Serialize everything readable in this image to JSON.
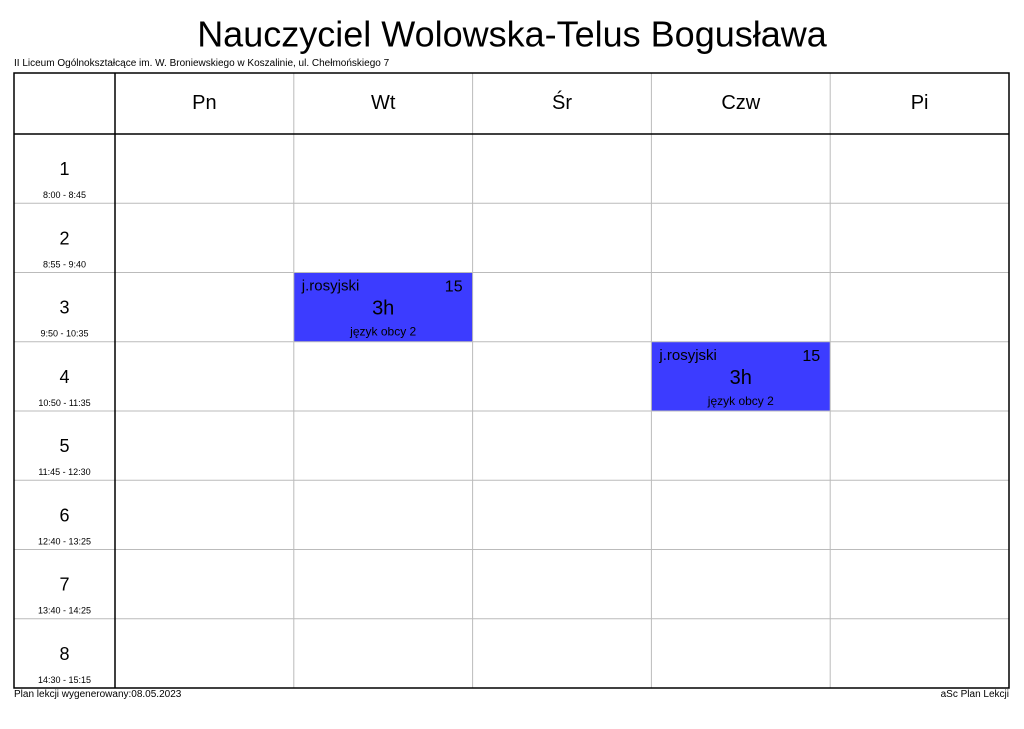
{
  "header": {
    "title": "Nauczyciel Wolowska-Telus Bogusława",
    "subtitle": "II Liceum Ogólnokształcące im. W. Broniewskiego w Koszalinie, ul. Chełmońskiego 7"
  },
  "days": [
    "Pn",
    "Wt",
    "Śr",
    "Czw",
    "Pi"
  ],
  "periods": [
    {
      "number": "1",
      "time": "8:00 - 8:45"
    },
    {
      "number": "2",
      "time": "8:55 - 9:40"
    },
    {
      "number": "3",
      "time": "9:50 - 10:35"
    },
    {
      "number": "4",
      "time": "10:50 - 11:35"
    },
    {
      "number": "5",
      "time": "11:45 - 12:30"
    },
    {
      "number": "6",
      "time": "12:40 - 13:25"
    },
    {
      "number": "7",
      "time": "13:40 - 14:25"
    },
    {
      "number": "8",
      "time": "14:30 - 15:15"
    }
  ],
  "timetable": [
    [
      null,
      null,
      null,
      null,
      null
    ],
    [
      null,
      null,
      null,
      null,
      null
    ],
    [
      null,
      {
        "subject": "j.rosyjski",
        "room": "15",
        "hours": "3h",
        "group": "język obcy 2"
      },
      null,
      null,
      null
    ],
    [
      null,
      null,
      null,
      {
        "subject": "j.rosyjski",
        "room": "15",
        "hours": "3h",
        "group": "język obcy 2"
      },
      null
    ],
    [
      null,
      null,
      null,
      null,
      null
    ],
    [
      null,
      null,
      null,
      null,
      null
    ],
    [
      null,
      null,
      null,
      null,
      null
    ],
    [
      null,
      null,
      null,
      null,
      null
    ]
  ],
  "footer": {
    "generated": "Plan lekcji wygenerowany:08.05.2023",
    "software": "aSc Plan Lekcji"
  }
}
